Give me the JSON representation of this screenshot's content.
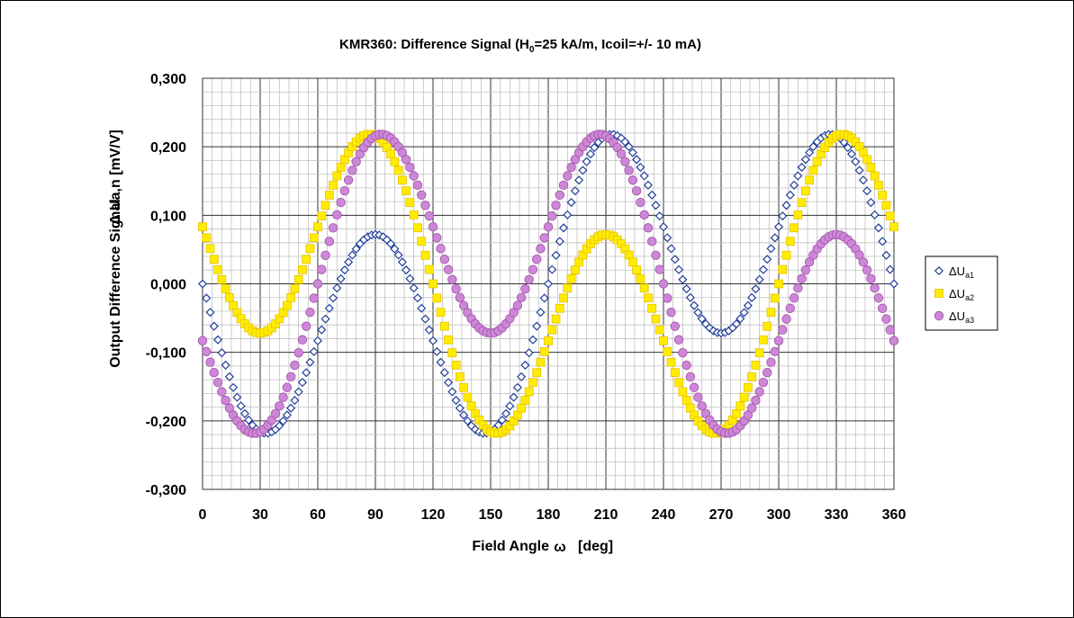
{
  "chart_data": {
    "type": "scatter",
    "title": {
      "prefix": "KMR360: Difference Signal (H",
      "sub": "0",
      "suffix": "=25 kA/m, Icoil=+/- 10 mA)"
    },
    "xlabel": {
      "text": "Field Angle",
      "symbol": "ω",
      "unit": "[deg]"
    },
    "ylabel": {
      "line1": "Output Difference Signal",
      "line2": "Δ Ua,n  [mV/V]"
    },
    "xlim": [
      0,
      360
    ],
    "ylim": [
      -0.3,
      0.3
    ],
    "x_ticks": [
      "0",
      "30",
      "60",
      "90",
      "120",
      "150",
      "180",
      "210",
      "240",
      "270",
      "300",
      "330",
      "360"
    ],
    "y_ticks": [
      "0,300",
      "0,200",
      "0,100",
      "0,000",
      "-0,100",
      "-0,200",
      "-0,300"
    ],
    "x_step": 2,
    "grid": {
      "major": true,
      "minor": true
    },
    "legend_position": "right",
    "series": [
      {
        "name": {
          "main": "ΔU",
          "sub": "a1"
        },
        "marker": "diamond",
        "color": "#1f3d99",
        "fill": "#ffffff",
        "function": "0.168*sin(3*(x-60)) + 0.096*sin(x-180)"
      },
      {
        "name": {
          "main": "ΔU",
          "sub": "a2"
        },
        "marker": "square",
        "color": "#e6c200",
        "fill": "#ffec00",
        "function": "0.168*sin(3*(x-180)) + 0.096*sin(x-300)"
      },
      {
        "name": {
          "main": "ΔU",
          "sub": "a3"
        },
        "marker": "circle",
        "color": "#a24fa8",
        "fill": "#cc88d6",
        "function": "0.168*sin(3*(x-300)) + 0.096*sin(x-60)"
      }
    ]
  }
}
